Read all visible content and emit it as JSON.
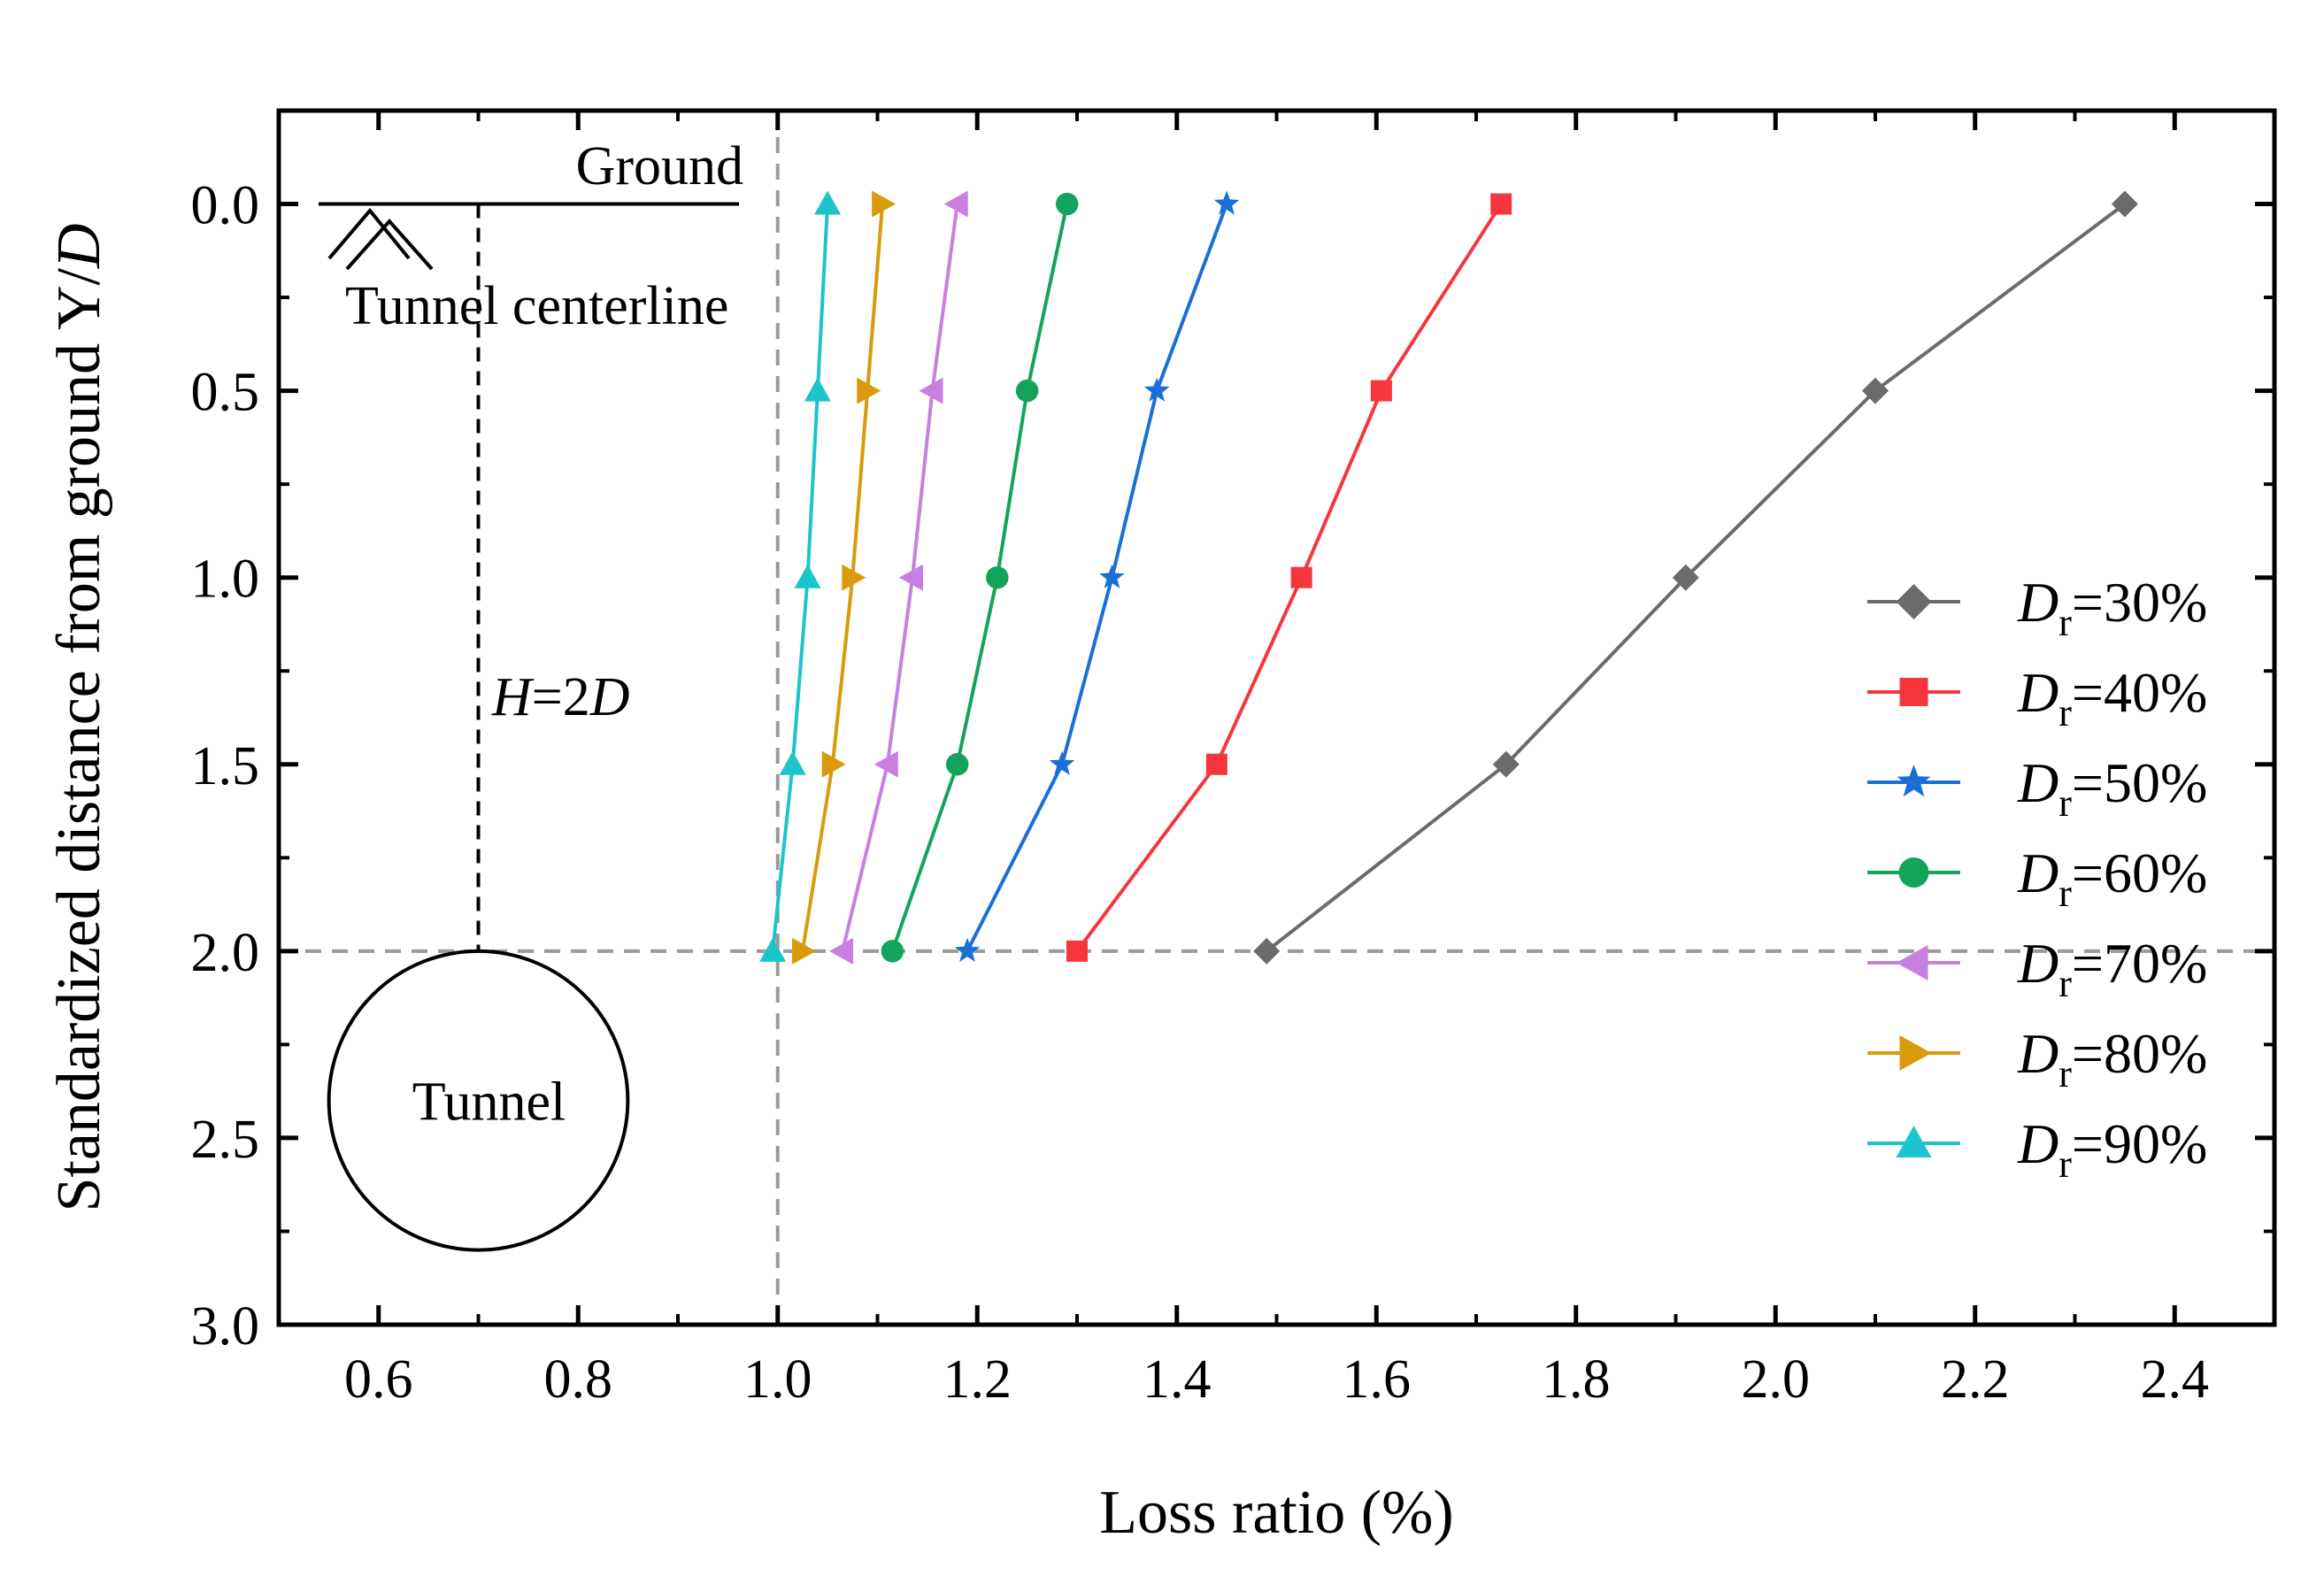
{
  "chart_data": {
    "type": "line",
    "xlabel": "Loss ratio (%)",
    "ylabel_main": "Standardized distance from ground Y/",
    "ylabel_italic": "D",
    "xlim": [
      0.5,
      2.5
    ],
    "ylim": [
      3.0,
      -0.25
    ],
    "y_inverted": true,
    "xticks": [
      "0.6",
      "0.8",
      "1.0",
      "1.2",
      "1.4",
      "1.6",
      "1.8",
      "2.0",
      "2.2",
      "2.4"
    ],
    "xtick_values": [
      0.6,
      0.8,
      1.0,
      1.2,
      1.4,
      1.6,
      1.8,
      2.0,
      2.2,
      2.4
    ],
    "yticks": [
      "0.0",
      "0.5",
      "1.0",
      "1.5",
      "2.0",
      "2.5",
      "3.0"
    ],
    "ytick_values": [
      0.0,
      0.5,
      1.0,
      1.5,
      2.0,
      2.5,
      3.0
    ],
    "grid": false,
    "legend_position": "right",
    "reference_lines": {
      "vertical_x": 1.0,
      "horizontal_y": 2.0
    },
    "y": [
      0.0,
      0.5,
      1.0,
      1.5,
      2.0
    ],
    "series": [
      {
        "name": "=30%",
        "label_sym": "D",
        "label_sub": "r",
        "color": "#6b6b6b",
        "marker": "diamond",
        "x": [
          2.35,
          2.1,
          1.91,
          1.73,
          1.49
        ]
      },
      {
        "name": "=40%",
        "label_sym": "D",
        "label_sub": "r",
        "color": "#f5363d",
        "marker": "square",
        "x": [
          1.725,
          1.605,
          1.525,
          1.44,
          1.3
        ]
      },
      {
        "name": "=50%",
        "label_sym": "D",
        "label_sub": "r",
        "color": "#1a6fd6",
        "marker": "star",
        "x": [
          1.45,
          1.38,
          1.335,
          1.285,
          1.19
        ]
      },
      {
        "name": "=60%",
        "label_sym": "D",
        "label_sub": "r",
        "color": "#12a45c",
        "marker": "circle",
        "x": [
          1.29,
          1.25,
          1.22,
          1.18,
          1.115
        ]
      },
      {
        "name": "=70%",
        "label_sym": "D",
        "label_sub": "r",
        "color": "#c77fe0",
        "marker": "triangle-left",
        "x": [
          1.18,
          1.155,
          1.135,
          1.11,
          1.065
        ]
      },
      {
        "name": "=80%",
        "label_sym": "D",
        "label_sub": "r",
        "color": "#d99a0c",
        "marker": "triangle-right",
        "x": [
          1.105,
          1.09,
          1.075,
          1.055,
          1.025
        ]
      },
      {
        "name": "=90%",
        "label_sym": "D",
        "label_sub": "r",
        "color": "#1cc4cc",
        "marker": "triangle-up",
        "x": [
          1.05,
          1.04,
          1.03,
          1.015,
          0.995
        ]
      }
    ],
    "annotations": {
      "ground": "Ground",
      "centerline": "Tunnel centerline",
      "depth_sym_h": "H",
      "depth_eq": "=2",
      "depth_sym_d": "D",
      "tunnel": "Tunnel"
    }
  }
}
